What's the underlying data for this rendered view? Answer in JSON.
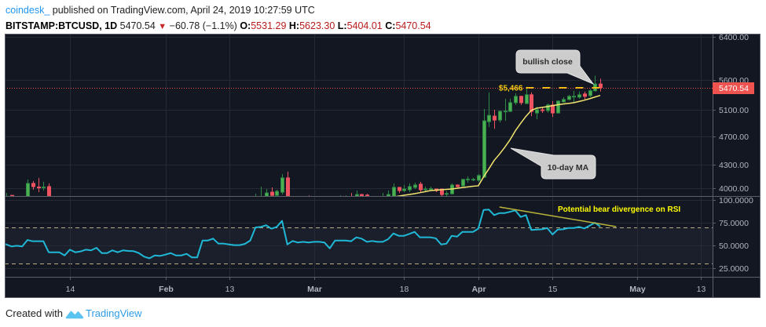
{
  "header": {
    "author": "coindesk_",
    "published": "published on TradingView.com, April 24, 2019 10:27:59 UTC",
    "symbol": "BITSTAMP:BTCUSD, 1D",
    "last": "5470.54",
    "change_direction": "down",
    "change": "−60.78 (−1.1%)",
    "ohlc": [
      {
        "label": "O:",
        "value": "5531.29"
      },
      {
        "label": "H:",
        "value": "5623.30"
      },
      {
        "label": "L:",
        "value": "5404.01"
      },
      {
        "label": "C:",
        "value": "5470.54"
      }
    ]
  },
  "annotations": {
    "bullish_close": "bullish close",
    "ma_label": "10-day MA",
    "rsi_note": "Potential bear divergence on RSI"
  },
  "footer": {
    "created_with": "Created with",
    "brand": "TradingView"
  },
  "colors": {
    "background": "#131722",
    "grid": "#262a35",
    "axis_line": "#5d606b",
    "axis_text": "#b2b5be",
    "up": "#4caf50",
    "up_border": "#2e8b47",
    "down": "#ef5361",
    "down_border": "#ef5361",
    "ma": "#f3e46f",
    "rsi": "#1fb8d6",
    "rsi_band": "#1b1f2b",
    "rsi_band_line": "#b8ad86",
    "trendline": "#b9b43c",
    "level": "#f2c80f",
    "annotation_text": "#ffff00",
    "price_line": "#ef5350",
    "price_label_bg": "#ef5350",
    "price_label_text": "#ffffff"
  },
  "chart_data": [
    {
      "id": "price",
      "type": "candlestick",
      "title": "BITSTAMP:BTCUSD, 1D",
      "xlabel": "",
      "ylabel": "",
      "y_scale": "log",
      "ylim": [
        3904,
        6467
      ],
      "grid": true,
      "y_ticks": [
        6400,
        5600,
        5100,
        4700,
        4300,
        4000
      ],
      "y_tick_labels": [
        "6400.00",
        "5600.00",
        "5100.00",
        "4700.00",
        "4300.00",
        "4000.00"
      ],
      "x_ticks": [
        {
          "label": "14",
          "date": "2019-01-14"
        },
        {
          "label": "Feb",
          "date": "2019-02-01"
        },
        {
          "label": "13",
          "date": "2019-02-13"
        },
        {
          "label": "Mar",
          "date": "2019-03-01"
        },
        {
          "label": "18",
          "date": "2019-03-18"
        },
        {
          "label": "Apr",
          "date": "2019-04-01"
        },
        {
          "label": "15",
          "date": "2019-04-15"
        },
        {
          "label": "May",
          "date": "2019-05-01"
        },
        {
          "label": "13",
          "date": "2019-05-13"
        }
      ],
      "candle_fields": [
        "date",
        "open",
        "high",
        "low",
        "close"
      ],
      "candles": [
        [
          "2019-01-02",
          3800,
          3941,
          3780,
          3895
        ],
        [
          "2019-01-03",
          3912,
          3915,
          3830,
          3850
        ],
        [
          "2019-01-05",
          3880,
          3905,
          3840,
          3860
        ],
        [
          "2019-01-06",
          3860,
          4110,
          3840,
          4060
        ],
        [
          "2019-01-07",
          4060,
          4090,
          3980,
          4020
        ],
        [
          "2019-01-08",
          4015,
          4130,
          3951,
          4005
        ],
        [
          "2019-01-09",
          4005,
          4080,
          3970,
          4015
        ],
        [
          "2019-01-10",
          4020,
          4060,
          3580,
          3620
        ],
        [
          "2019-02-18",
          3720,
          3931,
          3700,
          3880
        ],
        [
          "2019-02-19",
          3880,
          4020,
          3860,
          3895
        ],
        [
          "2019-02-20",
          3902,
          3990,
          3880,
          3941
        ],
        [
          "2019-02-21",
          3951,
          4010,
          3890,
          3912
        ],
        [
          "2019-02-22",
          3912,
          3980,
          3900,
          3961
        ],
        [
          "2019-02-23",
          3951,
          4181,
          3922,
          4130
        ],
        [
          "2019-02-24",
          4130,
          4212,
          3700,
          3740
        ],
        [
          "2019-02-28",
          3830,
          3912,
          3780,
          3810
        ],
        [
          "2019-03-06",
          3850,
          3912,
          3820,
          3880
        ],
        [
          "2019-03-07",
          3870,
          3912,
          3840,
          3885
        ],
        [
          "2019-03-08",
          3880,
          3941,
          3810,
          3850
        ],
        [
          "2019-03-09",
          3860,
          3970,
          3840,
          3922
        ],
        [
          "2019-03-10",
          3922,
          3930,
          3880,
          3902
        ],
        [
          "2019-03-11",
          3915,
          3931,
          3840,
          3860
        ],
        [
          "2019-03-14",
          3860,
          3941,
          3820,
          3880
        ],
        [
          "2019-03-15",
          3870,
          3970,
          3860,
          3922
        ],
        [
          "2019-03-16",
          3895,
          4060,
          3890,
          4010
        ],
        [
          "2019-03-17",
          4010,
          4015,
          3941,
          3970
        ],
        [
          "2019-03-18",
          3970,
          4040,
          3951,
          3990
        ],
        [
          "2019-03-19",
          3980,
          4060,
          3951,
          4020
        ],
        [
          "2019-03-20",
          4010,
          4070,
          3990,
          4040
        ],
        [
          "2019-03-21",
          4050,
          4080,
          3951,
          3980
        ],
        [
          "2019-03-22",
          3985,
          4020,
          3961,
          3990
        ],
        [
          "2019-03-23",
          3990,
          4020,
          3961,
          3995
        ],
        [
          "2019-03-24",
          3990,
          3995,
          3951,
          3970
        ],
        [
          "2019-03-25",
          3990,
          3995,
          3892,
          3922
        ],
        [
          "2019-03-26",
          3925,
          3961,
          3892,
          3935
        ],
        [
          "2019-03-27",
          3931,
          4060,
          3925,
          4040
        ],
        [
          "2019-03-28",
          4040,
          4045,
          4010,
          4020
        ],
        [
          "2019-03-29",
          4030,
          4120,
          4020,
          4110
        ],
        [
          "2019-03-30",
          4110,
          4150,
          4070,
          4115
        ],
        [
          "2019-03-31",
          4110,
          4130,
          4090,
          4112
        ],
        [
          "2019-04-01",
          4100,
          4181,
          4080,
          4161
        ],
        [
          "2019-04-02",
          4140,
          5117,
          4130,
          4932
        ],
        [
          "2019-04-03",
          4920,
          5389,
          4836,
          5017
        ],
        [
          "2019-04-04",
          5005,
          5105,
          4812,
          4944
        ],
        [
          "2019-04-05",
          4944,
          5092,
          4907,
          5080
        ],
        [
          "2019-04-06",
          5075,
          5284,
          4932,
          5085
        ],
        [
          "2019-04-07",
          5080,
          5284,
          5070,
          5219
        ],
        [
          "2019-04-08",
          5219,
          5375,
          5181,
          5323
        ],
        [
          "2019-04-09",
          5323,
          5330,
          5181,
          5219
        ],
        [
          "2019-04-10",
          5206,
          5483,
          5195,
          5349
        ],
        [
          "2019-04-11",
          5349,
          5389,
          5005,
          5080
        ],
        [
          "2019-04-12",
          5055,
          5155,
          4956,
          5105
        ],
        [
          "2019-04-13",
          5105,
          5155,
          5055,
          5092
        ],
        [
          "2019-04-14",
          5092,
          5206,
          5060,
          5181
        ],
        [
          "2019-04-15",
          5181,
          5245,
          4993,
          5055
        ],
        [
          "2019-04-16",
          5055,
          5258,
          5045,
          5245
        ],
        [
          "2019-04-17",
          5232,
          5310,
          5219,
          5271
        ],
        [
          "2019-04-18",
          5271,
          5349,
          5258,
          5323
        ],
        [
          "2019-04-19",
          5318,
          5416,
          5219,
          5325
        ],
        [
          "2019-04-20",
          5310,
          5402,
          5284,
          5349
        ],
        [
          "2019-04-21",
          5362,
          5402,
          5258,
          5323
        ],
        [
          "2019-04-22",
          5336,
          5442,
          5310,
          5416
        ],
        [
          "2019-04-23",
          5416,
          5675,
          5402,
          5531.29
        ],
        [
          "2019-04-24",
          5531.29,
          5623.3,
          5404.01,
          5470.54
        ]
      ],
      "series": [
        {
          "name": "10-day MA",
          "type": "line",
          "start": "2019-03-16",
          "values": [
            3893,
            3903,
            3913,
            3923,
            3932,
            3945,
            3958,
            3971,
            3976,
            3981,
            3986,
            3990,
            3999,
            4008,
            4016,
            4024,
            4030,
            4143,
            4248,
            4361,
            4447,
            4543,
            4651,
            4783,
            4895,
            5002,
            5095,
            5130,
            5143,
            5155,
            5170,
            5185,
            5197,
            5207,
            5218,
            5239,
            5259,
            5284,
            5311,
            5338
          ]
        }
      ],
      "last_price": 5470.54,
      "last_price_label": "5470.54",
      "levels": [
        {
          "label": "$5,466",
          "value": 5466,
          "from": "2019-04-10",
          "to": "2019-04-24",
          "style": "dashed"
        }
      ],
      "annotations": [
        "bullish close",
        "10-day MA",
        "$5,466"
      ]
    },
    {
      "id": "rsi",
      "type": "line",
      "title": "RSI",
      "xlabel": "",
      "ylabel": "",
      "ylim": [
        15.5,
        103.4
      ],
      "grid": true,
      "y_ticks": [
        100,
        75,
        50,
        25
      ],
      "y_tick_labels": [
        "100.0000",
        "75.0000",
        "50.0000",
        "25.0000"
      ],
      "bands": [
        30,
        70
      ],
      "series": [
        {
          "name": "RSI",
          "start": "2019-01-01",
          "values": [
            52,
            51.1,
            48.9,
            49.7,
            48.9,
            56,
            54.6,
            54.6,
            54.6,
            42.5,
            42.5,
            42.5,
            39,
            45.4,
            42.5,
            43.4,
            45.4,
            44.6,
            47.4,
            41.6,
            41.6,
            44.6,
            42.5,
            44.6,
            44,
            43.7,
            41.6,
            37.7,
            35.9,
            39,
            38.5,
            39.9,
            41.6,
            39,
            39,
            40.8,
            36.8,
            36.8,
            55.4,
            55.4,
            57.5,
            52,
            52,
            51.1,
            50.3,
            50.3,
            51.7,
            55.4,
            69.8,
            70.4,
            72.2,
            68.4,
            70.4,
            77,
            51.1,
            54.9,
            53.2,
            54,
            53.2,
            54,
            54,
            53.2,
            46.8,
            55.4,
            55.4,
            55.4,
            54.6,
            58.9,
            57.5,
            54,
            54.9,
            54,
            54,
            56.9,
            63.2,
            60.6,
            60.6,
            62.7,
            64.9,
            58.9,
            58.9,
            58.9,
            57.8,
            51.1,
            52,
            60.6,
            59.7,
            64.9,
            64.9,
            64.9,
            68.4,
            89,
            89.4,
            83.4,
            85.6,
            85.6,
            87,
            88.5,
            81.3,
            83.4,
            67,
            67.5,
            67.8,
            69.2,
            62.1,
            67.5,
            67.8,
            69.2,
            69.2,
            70.4,
            68.7,
            71.8,
            75,
            70.7
          ]
        }
      ],
      "trendlines": [
        {
          "from": {
            "date": "2019-04-05",
            "value": 92.2
          },
          "to": {
            "date": "2019-04-27",
            "value": 70.7
          }
        }
      ],
      "annotations": [
        "Potential bear divergence on RSI"
      ]
    }
  ]
}
